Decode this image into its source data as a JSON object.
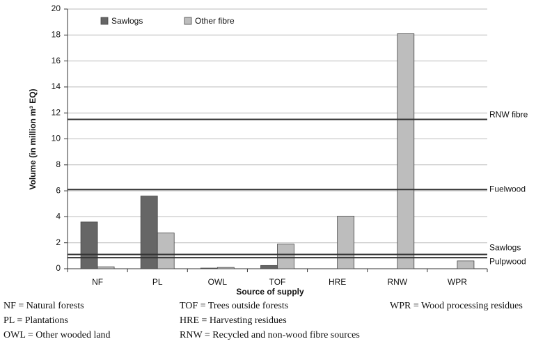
{
  "chart_data": {
    "type": "bar",
    "ylabel": "Volume (in million m³ EQ)",
    "xlabel": "Source of supply",
    "categories": [
      "NF",
      "PL",
      "OWL",
      "TOF",
      "HRE",
      "RNW",
      "WPR"
    ],
    "series": [
      {
        "name": "Sawlogs",
        "color": "#666666",
        "values": [
          3.6,
          5.6,
          0.05,
          0.25,
          null,
          null,
          null
        ]
      },
      {
        "name": "Other fibre",
        "color": "#bdbdbd",
        "values": [
          0.15,
          2.75,
          0.1,
          1.9,
          4.05,
          18.1,
          0.6
        ]
      }
    ],
    "reference_lines": [
      {
        "label": "RNW fibre",
        "value": 11.5
      },
      {
        "label": "Fuelwood",
        "value": 6.1
      },
      {
        "label": "Sawlogs",
        "value": 1.1
      },
      {
        "label": "Pulpwood",
        "value": 0.85
      }
    ],
    "ylim": [
      0,
      20
    ],
    "yticks": [
      0,
      2,
      4,
      6,
      8,
      10,
      12,
      14,
      16,
      18,
      20
    ],
    "grid": true,
    "notes": [
      "NF = Natural forests",
      "PL = Plantations",
      "OWL = Other wooded land",
      "TOF = Trees outside forests",
      "HRE = Harvesting residues",
      "RNW = Recycled and non-wood fibre sources",
      "WPR = Wood processing residues"
    ]
  }
}
